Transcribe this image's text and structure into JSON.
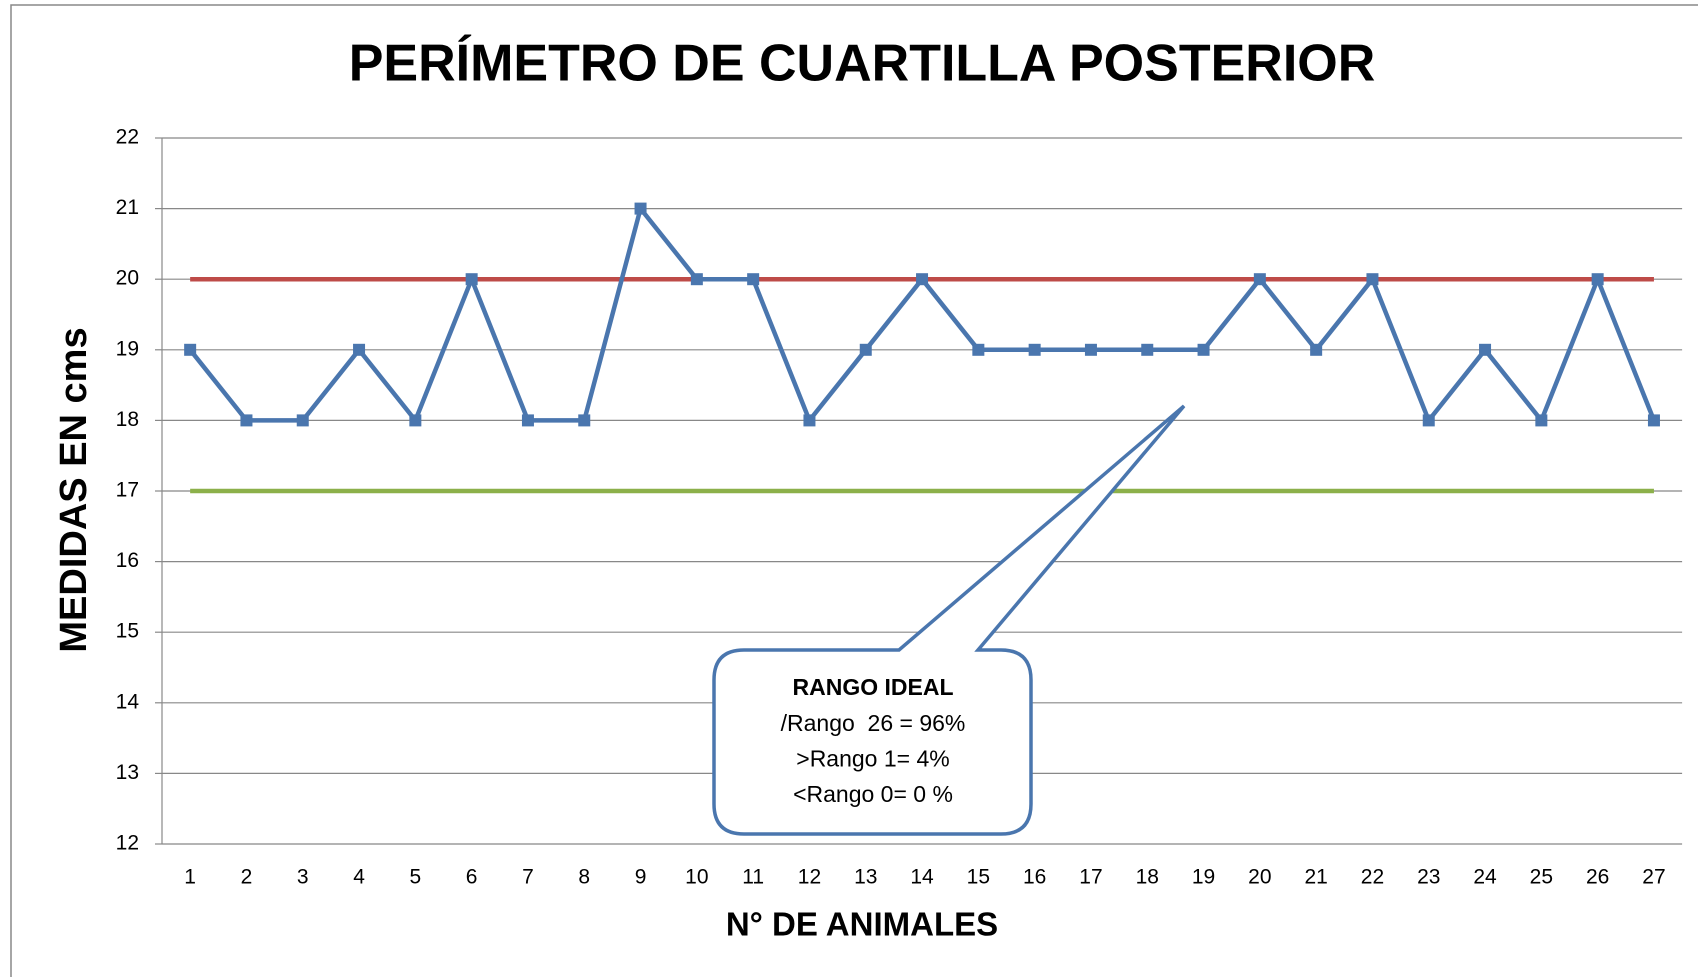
{
  "chart_data": {
    "type": "line",
    "title": "PERÍMETRO DE CUARTILLA POSTERIOR",
    "x_label": "N° DE ANIMALES",
    "y_label": "MEDIDAS EN cms",
    "categories": [
      1,
      2,
      3,
      4,
      5,
      6,
      7,
      8,
      9,
      10,
      11,
      12,
      13,
      14,
      15,
      16,
      17,
      18,
      19,
      20,
      21,
      22,
      23,
      24,
      25,
      26,
      27
    ],
    "series": [
      {
        "color": "#4a76ae",
        "markers": true,
        "values": [
          19,
          18,
          18,
          19,
          18,
          20,
          18,
          18,
          21,
          20,
          20,
          18,
          19,
          20,
          19,
          19,
          19,
          19,
          19,
          20,
          19,
          20,
          18,
          19,
          18,
          20,
          18
        ]
      },
      {
        "color": "#be4b48",
        "markers": false,
        "values": [
          20,
          20,
          20,
          20,
          20,
          20,
          20,
          20,
          20,
          20,
          20,
          20,
          20,
          20,
          20,
          20,
          20,
          20,
          20,
          20,
          20,
          20,
          20,
          20,
          20,
          20,
          20
        ]
      },
      {
        "color": "#8cb04a",
        "markers": false,
        "values": [
          17,
          17,
          17,
          17,
          17,
          17,
          17,
          17,
          17,
          17,
          17,
          17,
          17,
          17,
          17,
          17,
          17,
          17,
          17,
          17,
          17,
          17,
          17,
          17,
          17,
          17,
          17
        ]
      }
    ],
    "ylim": [
      12,
      22
    ],
    "yticks": [
      12,
      13,
      14,
      15,
      16,
      17,
      18,
      19,
      20,
      21,
      22
    ],
    "grid": true,
    "annotation": {
      "title": "RANGO IDEAL",
      "lines": [
        "/Rango  26 = 96%",
        ">Rango 1= 4%",
        "<Rango 0= 0 %"
      ]
    }
  }
}
